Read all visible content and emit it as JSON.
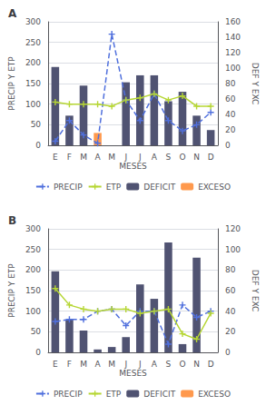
{
  "chart_data": [
    {
      "type": "bar",
      "title": "A",
      "x_label": "MESES",
      "y_label": "PRECIP Y ETP",
      "y2_label": "DEF Y EXC",
      "categories": [
        "E",
        "F",
        "M",
        "A",
        "M",
        "J",
        "J",
        "A",
        "S",
        "O",
        "N",
        "D"
      ],
      "series": [
        {
          "name": "PRECIP",
          "type": "line",
          "marker": "plus",
          "line_style": "dashed",
          "values": [
            10,
            60,
            25,
            5,
            270,
            110,
            60,
            125,
            60,
            35,
            50,
            80
          ]
        },
        {
          "name": "ETP",
          "type": "line",
          "marker": "plus",
          "line_style": "solid",
          "values": [
            105,
            100,
            100,
            100,
            95,
            110,
            115,
            125,
            110,
            120,
            95,
            95
          ]
        },
        {
          "name": "DEFICIT",
          "type": "bar",
          "values": [
            190,
            72,
            145,
            0,
            0,
            153,
            170,
            170,
            107,
            130,
            72,
            37
          ]
        },
        {
          "name": "EXCESO",
          "type": "bar",
          "values": [
            0,
            0,
            0,
            30,
            0,
            0,
            0,
            0,
            0,
            0,
            0,
            0
          ]
        }
      ],
      "ylim": [
        0,
        300
      ],
      "yticks": [
        0,
        50,
        100,
        150,
        200,
        250,
        300
      ],
      "y2lim": [
        0,
        160
      ],
      "y2ticks": [
        0,
        20,
        40,
        60,
        80,
        100,
        120,
        140,
        160
      ],
      "grid": true,
      "legend": "bottom"
    },
    {
      "type": "bar",
      "title": "B",
      "x_label": "MESES",
      "y_label": "PRECIP Y ETP",
      "y2_label": "DEF Y EXC",
      "categories": [
        "E",
        "F",
        "M",
        "A",
        "M",
        "J",
        "J",
        "A",
        "S",
        "O",
        "N",
        "D"
      ],
      "series": [
        {
          "name": "PRECIP",
          "type": "line",
          "marker": "plus",
          "line_style": "dashed",
          "values": [
            75,
            80,
            80,
            100,
            105,
            65,
            100,
            100,
            20,
            115,
            85,
            100
          ]
        },
        {
          "name": "ETP",
          "type": "line",
          "marker": "plus",
          "line_style": "solid",
          "values": [
            155,
            115,
            105,
            100,
            105,
            105,
            95,
            100,
            105,
            45,
            32,
            95
          ]
        },
        {
          "name": "DEFICIT",
          "type": "bar",
          "values": [
            197,
            80,
            53,
            7,
            13,
            37,
            165,
            130,
            267,
            20,
            230,
            0
          ]
        },
        {
          "name": "EXCESO",
          "type": "bar",
          "values": [
            0,
            0,
            0,
            0,
            0,
            0,
            0,
            0,
            0,
            0,
            0,
            0
          ]
        }
      ],
      "ylim": [
        0,
        300
      ],
      "yticks": [
        0,
        50,
        100,
        150,
        200,
        250,
        300
      ],
      "y2lim": [
        0,
        120
      ],
      "y2ticks": [
        0,
        20,
        40,
        60,
        80,
        100,
        120
      ],
      "grid": true,
      "legend": "bottom"
    }
  ]
}
